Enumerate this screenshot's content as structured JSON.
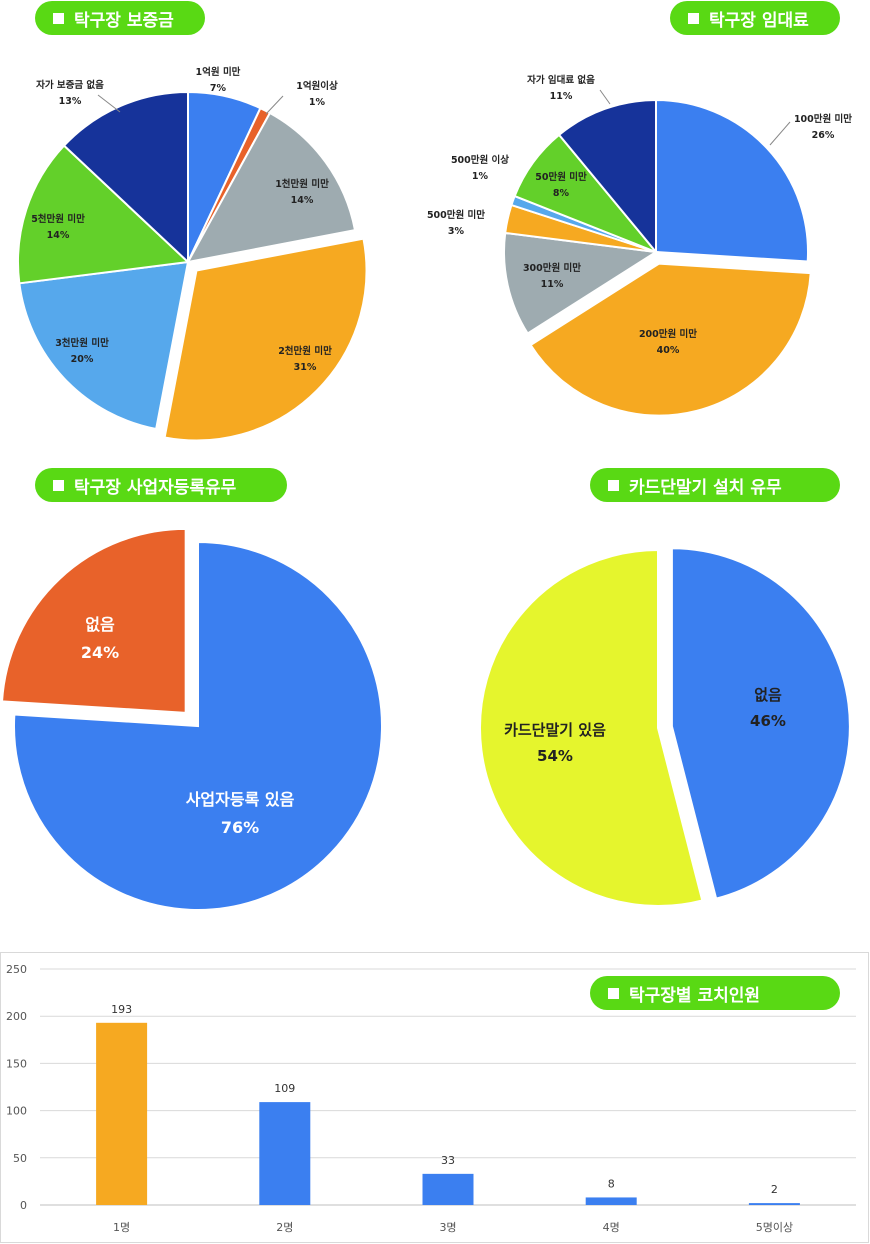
{
  "titles": {
    "deposit": "탁구장 보증금",
    "rent": "탁구장 임대료",
    "business": "탁구장 사업자등록유무",
    "card": "카드단말기 설치 유무",
    "coaches": "탁구장별 코치인원"
  },
  "chart_data": [
    {
      "type": "pie",
      "title": "탁구장 보증금",
      "slices": [
        {
          "label": "1억원 미만",
          "value": 7,
          "pct": "7%",
          "color": "#3b7ff0"
        },
        {
          "label": "1억원이상",
          "value": 1,
          "pct": "1%",
          "color": "#e8622a"
        },
        {
          "label": "1천만원 미만",
          "value": 14,
          "pct": "14%",
          "color": "#9eabb0"
        },
        {
          "label": "2천만원 미만",
          "value": 31,
          "pct": "31%",
          "color": "#f6a921"
        },
        {
          "label": "3천만원 미만",
          "value": 20,
          "pct": "20%",
          "color": "#56a8ec"
        },
        {
          "label": "5천만원 미만",
          "value": 14,
          "pct": "14%",
          "color": "#63d02a"
        },
        {
          "label": "자가 보증금 없음",
          "value": 13,
          "pct": "13%",
          "color": "#16339a"
        }
      ]
    },
    {
      "type": "pie",
      "title": "탁구장 임대료",
      "slices": [
        {
          "label": "100만원 미만",
          "value": 26,
          "pct": "26%",
          "color": "#3b7ff0"
        },
        {
          "label": "200만원 미만",
          "value": 40,
          "pct": "40%",
          "color": "#f6a921"
        },
        {
          "label": "300만원 미만",
          "value": 11,
          "pct": "11%",
          "color": "#9eabb0"
        },
        {
          "label": "500만원 미만",
          "value": 3,
          "pct": "3%",
          "color": "#f6a921"
        },
        {
          "label": "500만원 이상",
          "value": 1,
          "pct": "1%",
          "color": "#56a8ec"
        },
        {
          "label": "50만원 미만",
          "value": 8,
          "pct": "8%",
          "color": "#63d02a"
        },
        {
          "label": "자가 임대료 없음",
          "value": 11,
          "pct": "11%",
          "color": "#16339a"
        }
      ]
    },
    {
      "type": "pie",
      "title": "탁구장 사업자등록유무",
      "slices": [
        {
          "label": "사업자등록 있음",
          "value": 76,
          "pct": "76%",
          "color": "#3b7ff0"
        },
        {
          "label": "없음",
          "value": 24,
          "pct": "24%",
          "color": "#e8622a"
        }
      ]
    },
    {
      "type": "pie",
      "title": "카드단말기 설치 유무",
      "slices": [
        {
          "label": "없음",
          "value": 46,
          "pct": "46%",
          "color": "#3b7ff0"
        },
        {
          "label": "카드단말기 있음",
          "value": 54,
          "pct": "54%",
          "color": "#e5f52d"
        }
      ]
    },
    {
      "type": "bar",
      "title": "탁구장별 코치인원",
      "categories": [
        "1명",
        "2명",
        "3명",
        "4명",
        "5명이상"
      ],
      "values": [
        193,
        109,
        33,
        8,
        2
      ],
      "colors": [
        "#f6a921",
        "#3b7ff0",
        "#3b7ff0",
        "#3b7ff0",
        "#3b7ff0"
      ],
      "ylim": [
        0,
        250
      ],
      "yticks": [
        0,
        50,
        100,
        150,
        200,
        250
      ],
      "grid": true
    }
  ]
}
